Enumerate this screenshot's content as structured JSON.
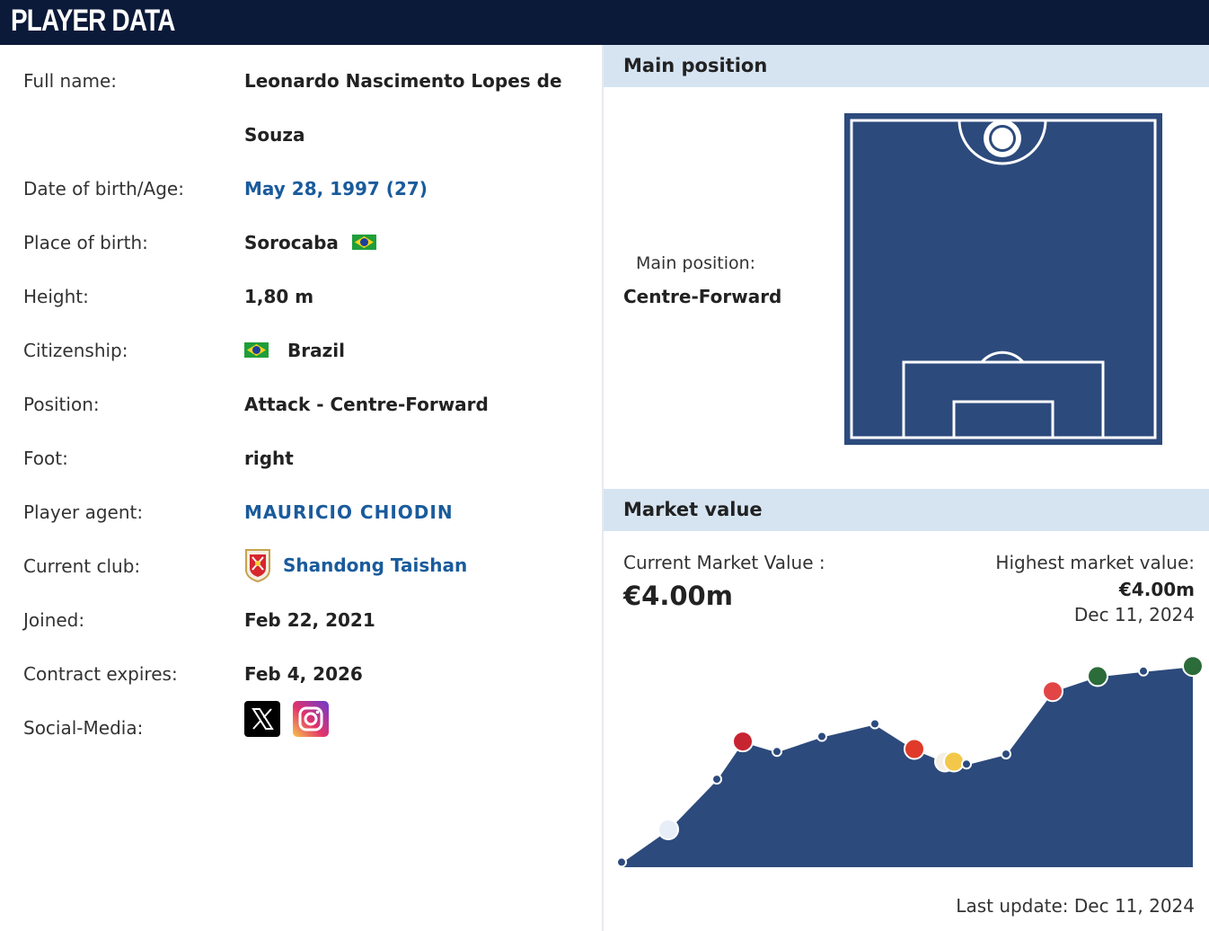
{
  "header": {
    "title": "PLAYER DATA"
  },
  "player": {
    "rows": [
      {
        "label": "Full name:",
        "value_line1": "Leonardo Nascimento Lopes de",
        "value_line2": "Souza"
      },
      {
        "label": "Date of birth/Age:",
        "value": "May 28, 1997 (27)"
      },
      {
        "label": "Place of birth:",
        "value": "Sorocaba"
      },
      {
        "label": "Height:",
        "value": "1,80 m"
      },
      {
        "label": "Citizenship:",
        "value": "Brazil"
      },
      {
        "label": "Position:",
        "value": "Attack - Centre-Forward"
      },
      {
        "label": "Foot:",
        "value": "right"
      },
      {
        "label": "Player agent:",
        "value": "MAURICIO CHIODIN"
      },
      {
        "label": "Current club:",
        "value": "Shandong Taishan"
      },
      {
        "label": "Joined:",
        "value": "Feb 22, 2021"
      },
      {
        "label": "Contract expires:",
        "value": "Feb 4, 2026"
      },
      {
        "label": "Social-Media:"
      }
    ],
    "flag_icon": "brazil-flag-icon",
    "club_icon": "shandong-taishan-crest-icon",
    "social_icons": [
      "x-twitter-icon",
      "instagram-icon"
    ]
  },
  "main_position": {
    "heading": "Main position",
    "label": "Main position:",
    "value": "Centre-Forward",
    "pitch_color": "#2c4a7c"
  },
  "market_value": {
    "heading": "Market value",
    "current_label": "Current Market Value :",
    "current_value": "€4.00m",
    "highest_label": "Highest market value:",
    "highest_value": "€4.00m",
    "highest_date": "Dec 11, 2024",
    "last_update": "Last update: Dec 11, 2024"
  },
  "chart_data": {
    "type": "area",
    "title": "",
    "xlabel": "",
    "ylabel": "",
    "fill_color": "#2c4a7c",
    "grid": false,
    "y": [
      0.1,
      0.75,
      1.75,
      2.5,
      2.3,
      2.6,
      2.85,
      2.35,
      2.1,
      2.1,
      2.05,
      2.25,
      3.5,
      3.8,
      3.9,
      4.0
    ],
    "ylim": [
      0,
      4.2
    ],
    "club_badge_points": [
      1,
      3,
      7,
      8,
      9,
      12,
      13,
      15
    ]
  }
}
